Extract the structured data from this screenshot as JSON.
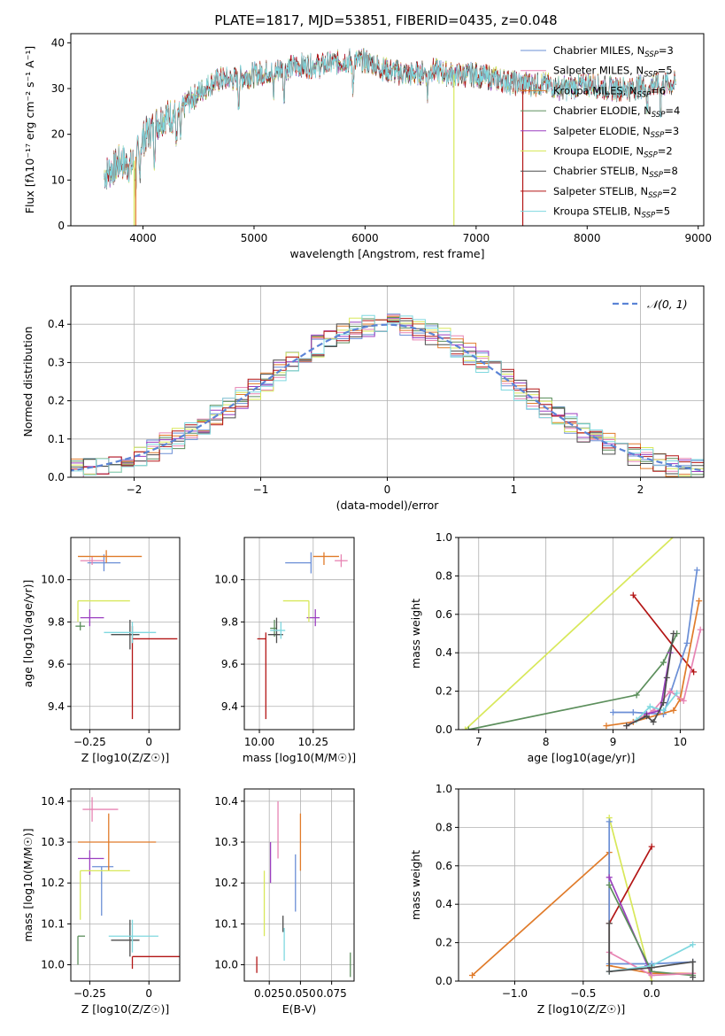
{
  "figure_title": "PLATE=1817, MJD=53851, FIBERID=0435, z=0.048",
  "colors": {
    "chabrier_miles": "#6b8fd6",
    "salpeter_miles": "#e784b3",
    "kroupa_miles": "#e07b2a",
    "chabrier_elodie": "#5c8f5c",
    "salpeter_elodie": "#9b3fc0",
    "kroupa_elodie": "#d8e85a",
    "chabrier_stelib": "#4d4d4d",
    "salpeter_stelib": "#b31515",
    "kroupa_stelib": "#7fd8df",
    "normal_curve": "#5b84d6",
    "grid": "#b0b0b0"
  },
  "legend_models": [
    {
      "label": "Chabrier MILES, N",
      "sub": "SSP",
      "eq": "=3",
      "color_key": "chabrier_miles"
    },
    {
      "label": "Salpeter MILES, N",
      "sub": "SSP",
      "eq": "=5",
      "color_key": "salpeter_miles"
    },
    {
      "label": "Kroupa MILES, N",
      "sub": "SSP",
      "eq": "=6",
      "color_key": "kroupa_miles"
    },
    {
      "label": "Chabrier ELODIE, N",
      "sub": "SSP",
      "eq": "=4",
      "color_key": "chabrier_elodie"
    },
    {
      "label": "Salpeter ELODIE, N",
      "sub": "SSP",
      "eq": "=3",
      "color_key": "salpeter_elodie"
    },
    {
      "label": "Kroupa ELODIE, N",
      "sub": "SSP",
      "eq": "=2",
      "color_key": "kroupa_elodie"
    },
    {
      "label": "Chabrier STELIB, N",
      "sub": "SSP",
      "eq": "=8",
      "color_key": "chabrier_stelib"
    },
    {
      "label": "Salpeter STELIB, N",
      "sub": "SSP",
      "eq": "=2",
      "color_key": "salpeter_stelib"
    },
    {
      "label": "Kroupa STELIB, N",
      "sub": "SSP",
      "eq": "=5",
      "color_key": "kroupa_stelib"
    }
  ],
  "chart_data": [
    {
      "id": "spectrum",
      "type": "line",
      "xlabel": "wavelength [Angstrom, rest frame]",
      "ylabel": "Flux [fλ10⁻¹⁷ erg cm⁻² s⁻¹ A⁻¹]",
      "xlim": [
        3350,
        9050
      ],
      "ylim": [
        0,
        42
      ],
      "xticks": [
        4000,
        5000,
        6000,
        7000,
        8000,
        9000
      ],
      "yticks": [
        0,
        10,
        20,
        30,
        40
      ],
      "continuum_x": [
        3650,
        3700,
        3800,
        3900,
        4000,
        4100,
        4200,
        4300,
        4400,
        4500,
        4600,
        4700,
        4800,
        5000,
        5200,
        5400,
        5600,
        5800,
        6000,
        6200,
        6400,
        6600,
        6800,
        7000,
        7200,
        7400,
        7600,
        7800,
        8000,
        8200,
        8400,
        8600,
        8800
      ],
      "continuum_y": [
        11,
        12,
        14,
        13,
        19,
        22,
        24,
        24,
        27,
        29,
        31,
        32,
        32,
        33,
        34,
        35,
        35,
        36,
        36,
        34,
        33,
        34,
        33,
        33,
        32,
        31,
        31,
        30,
        31,
        30,
        30,
        31,
        31
      ],
      "absorption_features_x": [
        3934,
        3969,
        4102,
        4304,
        4340,
        4861,
        5175,
        5270,
        5890,
        6563,
        8542,
        8662
      ],
      "model_dropouts_x": [
        {
          "x": 3920,
          "color_key": "kroupa_elodie"
        },
        {
          "x": 3935,
          "color_key": "kroupa_miles"
        },
        {
          "x": 6800,
          "color_key": "kroupa_elodie"
        },
        {
          "x": 7420,
          "color_key": "salpeter_stelib"
        }
      ]
    },
    {
      "id": "residual_histogram",
      "type": "histogram",
      "xlabel": "(data-model)/error",
      "ylabel": "Normed distribution",
      "xlim": [
        -2.5,
        2.5
      ],
      "ylim": [
        0,
        0.5
      ],
      "xticks": [
        -2,
        -1,
        0,
        1,
        2
      ],
      "yticks": [
        0.0,
        0.1,
        0.2,
        0.3,
        0.4
      ],
      "bin_width": 0.1,
      "reference_curve": {
        "name": "𝒩(0, 1)",
        "mean": 0,
        "sigma": 1,
        "color_key": "normal_curve"
      },
      "jitter_amplitude": 0.03
    },
    {
      "id": "z_vs_age",
      "type": "errorbar",
      "xlabel": "Z [log10(Z/Z☉)]",
      "ylabel": "age  [log10(age/yr)]",
      "xlim": [
        -0.33,
        0.13
      ],
      "ylim": [
        9.29,
        10.2
      ],
      "xticks": [
        -0.25,
        0.0
      ],
      "yticks": [
        9.4,
        9.6,
        9.8,
        10.0
      ],
      "points": [
        {
          "key": "chabrier_miles",
          "x": -0.19,
          "y": 10.08,
          "xerr": [
            0.07,
            0.07
          ],
          "yerr": [
            0.04,
            0.04
          ]
        },
        {
          "key": "salpeter_miles",
          "x": -0.24,
          "y": 10.09,
          "xerr": [
            0.05,
            0.05
          ],
          "yerr": [
            0.02,
            0.02
          ]
        },
        {
          "key": "kroupa_miles",
          "x": -0.18,
          "y": 10.11,
          "xerr": [
            0.12,
            0.15
          ],
          "yerr": [
            0.03,
            0.03
          ]
        },
        {
          "key": "chabrier_elodie",
          "x": -0.29,
          "y": 9.78,
          "xerr": [
            0.02,
            0.02
          ],
          "yerr": [
            0.02,
            0.02
          ]
        },
        {
          "key": "salpeter_elodie",
          "x": -0.25,
          "y": 9.82,
          "xerr": [
            0.04,
            0.06
          ],
          "yerr": [
            0.04,
            0.04
          ]
        },
        {
          "key": "kroupa_elodie",
          "x": -0.3,
          "y": 9.9,
          "xerr": [
            0.0,
            0.22
          ],
          "yerr": [
            0.1,
            0.0
          ]
        },
        {
          "key": "chabrier_stelib",
          "x": -0.08,
          "y": 9.74,
          "xerr": [
            0.08,
            0.04
          ],
          "yerr": [
            0.07,
            0.07
          ]
        },
        {
          "key": "salpeter_stelib",
          "x": -0.07,
          "y": 9.72,
          "xerr": [
            0.0,
            0.19
          ],
          "yerr": [
            0.38,
            0.06
          ]
        },
        {
          "key": "kroupa_stelib",
          "x": -0.07,
          "y": 9.75,
          "xerr": [
            0.12,
            0.1
          ],
          "yerr": [
            0.05,
            0.05
          ]
        }
      ]
    },
    {
      "id": "mass_vs_age",
      "type": "errorbar",
      "xlabel": "mass [log10(M/M☉)]",
      "ylabel": "",
      "xlim": [
        9.93,
        10.44
      ],
      "ylim": [
        9.29,
        10.2
      ],
      "xticks": [
        10.0,
        10.25
      ],
      "yticks": [
        9.4,
        9.6,
        9.8,
        10.0
      ],
      "points": [
        {
          "key": "chabrier_miles",
          "x": 10.24,
          "y": 10.08,
          "xerr": [
            0.12,
            0.0
          ],
          "yerr": [
            0.05,
            0.05
          ]
        },
        {
          "key": "salpeter_miles",
          "x": 10.38,
          "y": 10.09,
          "xerr": [
            0.03,
            0.03
          ],
          "yerr": [
            0.03,
            0.03
          ]
        },
        {
          "key": "kroupa_miles",
          "x": 10.3,
          "y": 10.11,
          "xerr": [
            0.05,
            0.07
          ],
          "yerr": [
            0.04,
            0.02
          ]
        },
        {
          "key": "chabrier_elodie",
          "x": 10.07,
          "y": 9.77,
          "xerr": [
            0.02,
            0.01
          ],
          "yerr": [
            0.04,
            0.04
          ]
        },
        {
          "key": "salpeter_elodie",
          "x": 10.26,
          "y": 9.82,
          "xerr": [
            0.04,
            0.02
          ],
          "yerr": [
            0.04,
            0.04
          ]
        },
        {
          "key": "kroupa_elodie",
          "x": 10.23,
          "y": 9.9,
          "xerr": [
            0.12,
            0.0
          ],
          "yerr": [
            0.1,
            0.0
          ]
        },
        {
          "key": "chabrier_stelib",
          "x": 10.08,
          "y": 9.74,
          "xerr": [
            0.04,
            0.03
          ],
          "yerr": [
            0.04,
            0.08
          ]
        },
        {
          "key": "salpeter_stelib",
          "x": 10.03,
          "y": 9.72,
          "xerr": [
            0.04,
            0.0
          ],
          "yerr": [
            0.38,
            0.03
          ]
        },
        {
          "key": "kroupa_stelib",
          "x": 10.1,
          "y": 9.76,
          "xerr": [
            0.05,
            0.02
          ],
          "yerr": [
            0.04,
            0.04
          ]
        }
      ]
    },
    {
      "id": "age_vs_weight",
      "type": "line",
      "xlabel": "age  [log10(age/yr)]",
      "ylabel": "mass weight",
      "xlim": [
        6.7,
        10.35
      ],
      "ylim": [
        0,
        1.0
      ],
      "xticks": [
        7,
        8,
        9,
        10
      ],
      "yticks": [
        0.0,
        0.2,
        0.4,
        0.6,
        0.8,
        1.0
      ],
      "series": [
        {
          "key": "kroupa_elodie",
          "x": [
            6.8,
            9.95
          ],
          "y": [
            0.0,
            1.02
          ]
        },
        {
          "key": "chabrier_elodie",
          "x": [
            6.85,
            9.35,
            9.75,
            9.95
          ],
          "y": [
            0.0,
            0.18,
            0.35,
            0.5
          ]
        },
        {
          "key": "salpeter_stelib",
          "x": [
            9.3,
            10.2
          ],
          "y": [
            0.7,
            0.3
          ]
        },
        {
          "key": "chabrier_miles",
          "x": [
            9.0,
            9.3,
            9.75,
            10.1,
            10.25
          ],
          "y": [
            0.09,
            0.09,
            0.08,
            0.45,
            0.83
          ]
        },
        {
          "key": "kroupa_miles",
          "x": [
            8.9,
            9.3,
            9.9,
            10.0,
            10.28
          ],
          "y": [
            0.02,
            0.04,
            0.1,
            0.16,
            0.67
          ]
        },
        {
          "key": "salpeter_miles",
          "x": [
            9.2,
            9.6,
            9.85,
            10.05,
            10.3
          ],
          "y": [
            0.02,
            0.1,
            0.2,
            0.15,
            0.52
          ]
        },
        {
          "key": "salpeter_elodie",
          "x": [
            9.5,
            9.7,
            9.85
          ],
          "y": [
            0.08,
            0.1,
            0.4
          ]
        },
        {
          "key": "kroupa_stelib",
          "x": [
            9.35,
            9.55,
            9.75,
            9.95
          ],
          "y": [
            0.05,
            0.12,
            0.1,
            0.19
          ]
        },
        {
          "key": "chabrier_stelib",
          "x": [
            9.2,
            9.5,
            9.6,
            9.75,
            9.8,
            9.9
          ],
          "y": [
            0.02,
            0.07,
            0.04,
            0.14,
            0.27,
            0.5
          ]
        }
      ]
    },
    {
      "id": "z_vs_mass",
      "type": "errorbar",
      "xlabel": "Z [log10(Z/Z☉)]",
      "ylabel": "mass [log10(M/M☉)]",
      "xlim": [
        -0.33,
        0.13
      ],
      "ylim": [
        9.96,
        10.43
      ],
      "xticks": [
        -0.25,
        0.0
      ],
      "yticks": [
        10.0,
        10.1,
        10.2,
        10.3,
        10.4
      ],
      "points": [
        {
          "key": "chabrier_miles",
          "x": -0.2,
          "y": 10.24,
          "xerr": [
            0.04,
            0.05
          ],
          "yerr": [
            0.12,
            0.0
          ]
        },
        {
          "key": "salpeter_miles",
          "x": -0.24,
          "y": 10.38,
          "xerr": [
            0.04,
            0.11
          ],
          "yerr": [
            0.03,
            0.03
          ]
        },
        {
          "key": "kroupa_miles",
          "x": -0.17,
          "y": 10.3,
          "xerr": [
            0.13,
            0.2
          ],
          "yerr": [
            0.07,
            0.07
          ]
        },
        {
          "key": "chabrier_elodie",
          "x": -0.3,
          "y": 10.07,
          "xerr": [
            0.0,
            0.03
          ],
          "yerr": [
            0.07,
            0.0
          ]
        },
        {
          "key": "salpeter_elodie",
          "x": -0.25,
          "y": 10.26,
          "xerr": [
            0.05,
            0.06
          ],
          "yerr": [
            0.04,
            0.02
          ]
        },
        {
          "key": "kroupa_elodie",
          "x": -0.29,
          "y": 10.23,
          "xerr": [
            0.0,
            0.21
          ],
          "yerr": [
            0.12,
            0.0
          ]
        },
        {
          "key": "chabrier_stelib",
          "x": -0.08,
          "y": 10.06,
          "xerr": [
            0.08,
            0.04
          ],
          "yerr": [
            0.04,
            0.05
          ]
        },
        {
          "key": "salpeter_stelib",
          "x": -0.07,
          "y": 10.02,
          "xerr": [
            0.0,
            0.2
          ],
          "yerr": [
            0.03,
            0.0
          ]
        },
        {
          "key": "kroupa_stelib",
          "x": -0.07,
          "y": 10.07,
          "xerr": [
            0.1,
            0.11
          ],
          "yerr": [
            0.04,
            0.04
          ]
        }
      ]
    },
    {
      "id": "ebv_vs_mass",
      "type": "errorbar",
      "xlabel": "E(B-V)",
      "ylabel": "",
      "xlim": [
        0.005,
        0.093
      ],
      "ylim": [
        9.96,
        10.43
      ],
      "xticks": [
        0.025,
        0.05,
        0.075
      ],
      "xtick_labels": [
        "0.025",
        "0.050",
        "0.075"
      ],
      "yticks": [
        10.0,
        10.1,
        10.2,
        10.3,
        10.4
      ],
      "points": [
        {
          "key": "chabrier_miles",
          "x": 0.046,
          "y": 10.2,
          "xerr": [
            0.0,
            0.0
          ],
          "yerr": [
            0.07,
            0.07
          ]
        },
        {
          "key": "salpeter_miles",
          "x": 0.032,
          "y": 10.33,
          "xerr": [
            0.0,
            0.0
          ],
          "yerr": [
            0.07,
            0.07
          ]
        },
        {
          "key": "kroupa_miles",
          "x": 0.05,
          "y": 10.3,
          "xerr": [
            0.0,
            0.0
          ],
          "yerr": [
            0.07,
            0.07
          ]
        },
        {
          "key": "chabrier_elodie",
          "x": 0.09,
          "y": 10.0,
          "xerr": [
            0.0,
            0.0
          ],
          "yerr": [
            0.03,
            0.03
          ]
        },
        {
          "key": "salpeter_elodie",
          "x": 0.026,
          "y": 10.25,
          "xerr": [
            0.0,
            0.0
          ],
          "yerr": [
            0.05,
            0.05
          ]
        },
        {
          "key": "kroupa_elodie",
          "x": 0.021,
          "y": 10.15,
          "xerr": [
            0.0,
            0.0
          ],
          "yerr": [
            0.08,
            0.08
          ]
        },
        {
          "key": "chabrier_stelib",
          "x": 0.036,
          "y": 10.1,
          "xerr": [
            0.0,
            0.0
          ],
          "yerr": [
            0.02,
            0.02
          ]
        },
        {
          "key": "salpeter_stelib",
          "x": 0.015,
          "y": 10.0,
          "xerr": [
            0.0,
            0.0
          ],
          "yerr": [
            0.02,
            0.02
          ]
        },
        {
          "key": "kroupa_stelib",
          "x": 0.037,
          "y": 10.05,
          "xerr": [
            0.0,
            0.0
          ],
          "yerr": [
            0.04,
            0.04
          ]
        }
      ]
    },
    {
      "id": "z_vs_weight",
      "type": "line",
      "xlabel": "Z [log10(Z/Z☉)]",
      "ylabel": "mass weight",
      "xlim": [
        -1.41,
        0.38
      ],
      "ylim": [
        0,
        1.0
      ],
      "xticks": [
        -1.0,
        -0.5,
        0.0
      ],
      "xtick_labels": [
        "−1.0",
        "−0.5",
        "0.0"
      ],
      "yticks": [
        0.0,
        0.2,
        0.4,
        0.6,
        0.8,
        1.0
      ],
      "series": [
        {
          "key": "kroupa_elodie",
          "x": [
            -0.31,
            0.0
          ],
          "y": [
            0.85,
            0.0
          ]
        },
        {
          "key": "kroupa_miles",
          "x": [
            -1.31,
            -0.31,
            -0.31,
            0.0,
            0.3
          ],
          "y": [
            0.03,
            0.67,
            0.08,
            0.04,
            0.04
          ]
        },
        {
          "key": "salpeter_stelib",
          "x": [
            -0.31,
            0.0
          ],
          "y": [
            0.3,
            0.7
          ]
        },
        {
          "key": "chabrier_miles",
          "x": [
            -0.31,
            -0.31,
            0.0,
            0.3
          ],
          "y": [
            0.83,
            0.09,
            0.09,
            0.1
          ]
        },
        {
          "key": "salpeter_elodie",
          "x": [
            -0.31,
            -0.03,
            0.0
          ],
          "y": [
            0.54,
            0.08,
            0.03
          ]
        },
        {
          "key": "chabrier_elodie",
          "x": [
            -0.31,
            0.0,
            0.3
          ],
          "y": [
            0.5,
            0.05,
            0.03
          ]
        },
        {
          "key": "salpeter_miles",
          "x": [
            -0.31,
            0.0,
            0.3
          ],
          "y": [
            0.15,
            0.03,
            0.04
          ]
        },
        {
          "key": "kroupa_stelib",
          "x": [
            -0.31,
            0.0,
            0.3
          ],
          "y": [
            0.05,
            0.08,
            0.19
          ]
        },
        {
          "key": "chabrier_stelib",
          "x": [
            -0.31,
            -0.31,
            0.0,
            0.3,
            0.3
          ],
          "y": [
            0.3,
            0.05,
            0.07,
            0.1,
            0.02
          ]
        }
      ]
    }
  ]
}
